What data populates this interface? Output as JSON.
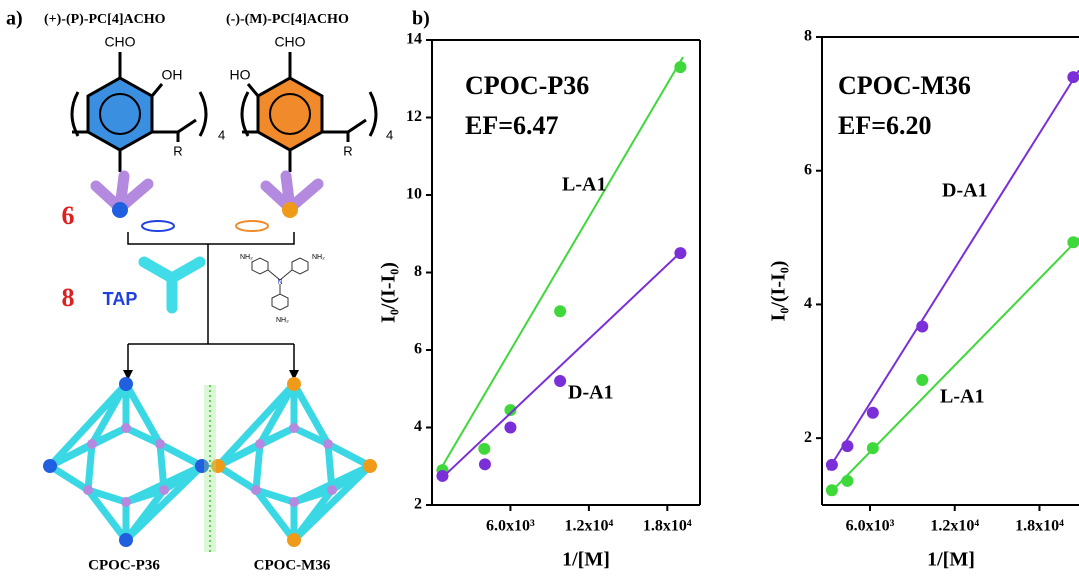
{
  "panel_a": {
    "label": "a)",
    "left_monomer": "(+)-(P)-PC[4]ACHO",
    "right_monomer": "(-)-(M)-PC[4]ACHO",
    "left_cho": "CHO",
    "left_oh": "OH",
    "right_cho": "CHO",
    "right_ho": "HO",
    "repeat": "4",
    "substituent": "R",
    "count_monomer": "6",
    "count_amine": "8",
    "amine_name": "TAP",
    "amine_group": "NH₂",
    "amine_center": "N",
    "left_cage": "CPOC-P36",
    "right_cage": "CPOC-M36"
  },
  "panel_b_label": "b)",
  "chart_data": [
    {
      "type": "scatter",
      "title": "CPOC-P36",
      "subtitle": "EF=6.47",
      "x_label": "1/[M]",
      "y_label": "I₀/(I-I₀)",
      "xlim": [
        0,
        20500
      ],
      "ylim": [
        2,
        14
      ],
      "xticks": [
        {
          "value": 6000,
          "label": "6.0x10³"
        },
        {
          "value": 12000,
          "label": "1.2x10⁴"
        },
        {
          "value": 18000,
          "label": "1.8x10⁴"
        }
      ],
      "yticks": [
        2,
        4,
        6,
        8,
        10,
        12,
        14
      ],
      "series": [
        {
          "name": "L-A1",
          "color": "#3fd83a",
          "x": [
            800,
            4000,
            6000,
            9800,
            19000
          ],
          "values": [
            2.9,
            3.45,
            4.45,
            7.0,
            13.3
          ],
          "fit_x": [
            612,
            19200
          ],
          "fit_values": [
            2.9,
            13.56
          ]
        },
        {
          "name": "D-A1",
          "color": "#7b2fd8",
          "x": [
            800,
            4050,
            6000,
            9800,
            19000
          ],
          "values": [
            2.75,
            3.05,
            4.0,
            5.2,
            8.5
          ],
          "fit_x": [
            612,
            19200
          ],
          "fit_values": [
            2.65,
            8.58
          ]
        }
      ]
    },
    {
      "type": "scatter",
      "title": "CPOC-M36",
      "subtitle": "EF=6.20",
      "x_label": "1/[M]",
      "y_label": "I₀/(I-I₀)",
      "xlim": [
        2600,
        20800
      ],
      "ylim": [
        1,
        8
      ],
      "xticks": [
        {
          "value": 6000,
          "label": "6.0x10³"
        },
        {
          "value": 12000,
          "label": "1.2x10⁴"
        },
        {
          "value": 18000,
          "label": "1.8x10⁴"
        }
      ],
      "yticks": [
        2,
        4,
        6,
        8
      ],
      "series": [
        {
          "name": "D-A1",
          "color": "#7b2fd8",
          "x": [
            3300,
            4400,
            6200,
            9700,
            20400
          ],
          "values": [
            1.6,
            1.88,
            2.38,
            3.67,
            7.4
          ],
          "fit_x": [
            3025,
            20800
          ],
          "fit_values": [
            1.52,
            7.5
          ]
        },
        {
          "name": "L-A1",
          "color": "#3fd83a",
          "x": [
            3300,
            4400,
            6200,
            9700,
            20400
          ],
          "values": [
            1.22,
            1.36,
            1.85,
            2.87,
            4.93
          ],
          "fit_x": [
            3025,
            20800
          ],
          "fit_values": [
            1.15,
            4.99
          ]
        }
      ]
    }
  ]
}
